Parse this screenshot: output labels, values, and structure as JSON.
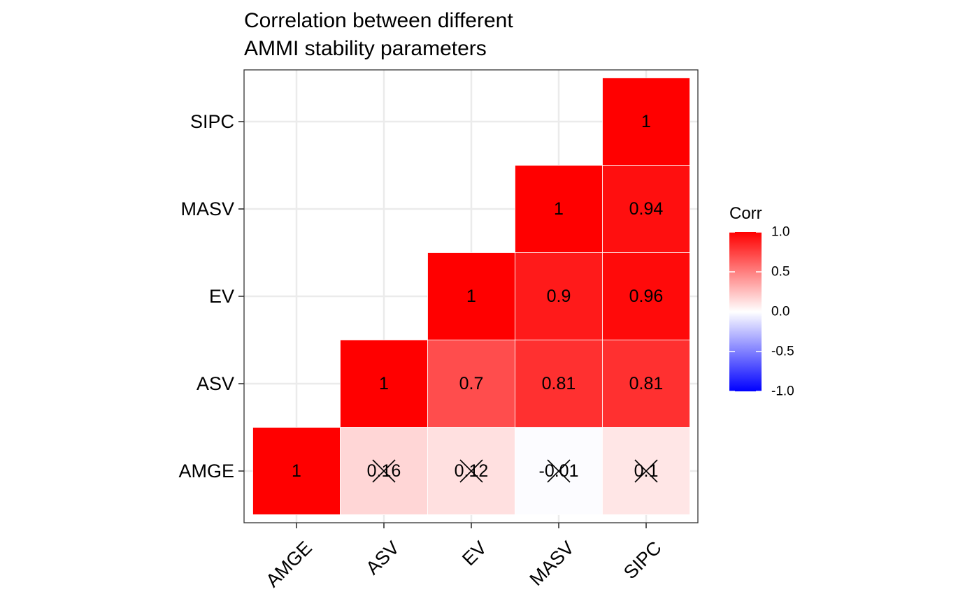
{
  "chart_data": {
    "type": "heatmap",
    "title_lines": [
      "Correlation between different",
      "AMMI stability parameters"
    ],
    "xlabel": "",
    "ylabel": "",
    "variables": [
      "AMGE",
      "ASV",
      "EV",
      "MASV",
      "SIPC"
    ],
    "x_tick_labels": [
      "AMGE",
      "ASV",
      "EV",
      "MASV",
      "SIPC"
    ],
    "y_tick_labels": [
      "AMGE",
      "ASV",
      "EV",
      "MASV",
      "SIPC"
    ],
    "cells": [
      {
        "x": "AMGE",
        "y": "AMGE",
        "value": 1,
        "label": "1",
        "insignificant": false
      },
      {
        "x": "ASV",
        "y": "AMGE",
        "value": 0.16,
        "label": "0.16",
        "insignificant": true
      },
      {
        "x": "EV",
        "y": "AMGE",
        "value": 0.12,
        "label": "0.12",
        "insignificant": true
      },
      {
        "x": "MASV",
        "y": "AMGE",
        "value": -0.01,
        "label": "-0.01",
        "insignificant": true
      },
      {
        "x": "SIPC",
        "y": "AMGE",
        "value": 0.1,
        "label": "0.1",
        "insignificant": true
      },
      {
        "x": "ASV",
        "y": "ASV",
        "value": 1,
        "label": "1",
        "insignificant": false
      },
      {
        "x": "EV",
        "y": "ASV",
        "value": 0.7,
        "label": "0.7",
        "insignificant": false
      },
      {
        "x": "MASV",
        "y": "ASV",
        "value": 0.81,
        "label": "0.81",
        "insignificant": false
      },
      {
        "x": "SIPC",
        "y": "ASV",
        "value": 0.81,
        "label": "0.81",
        "insignificant": false
      },
      {
        "x": "EV",
        "y": "EV",
        "value": 1,
        "label": "1",
        "insignificant": false
      },
      {
        "x": "MASV",
        "y": "EV",
        "value": 0.9,
        "label": "0.9",
        "insignificant": false
      },
      {
        "x": "SIPC",
        "y": "EV",
        "value": 0.96,
        "label": "0.96",
        "insignificant": false
      },
      {
        "x": "MASV",
        "y": "MASV",
        "value": 1,
        "label": "1",
        "insignificant": false
      },
      {
        "x": "SIPC",
        "y": "MASV",
        "value": 0.94,
        "label": "0.94",
        "insignificant": false
      },
      {
        "x": "SIPC",
        "y": "SIPC",
        "value": 1,
        "label": "1",
        "insignificant": false
      }
    ],
    "legend": {
      "title": "Corr",
      "position": "right",
      "range": [
        -1.0,
        1.0
      ],
      "breaks": [
        1.0,
        0.5,
        0.0,
        -0.5,
        -1.0
      ],
      "break_labels": [
        "1.0",
        "0.5",
        "0.0",
        "-0.5",
        "-1.0"
      ],
      "colors": {
        "low": "#0000FF",
        "mid": "#FFFFFF",
        "high": "#FF0000"
      }
    },
    "grid": true,
    "panel_border": true
  }
}
